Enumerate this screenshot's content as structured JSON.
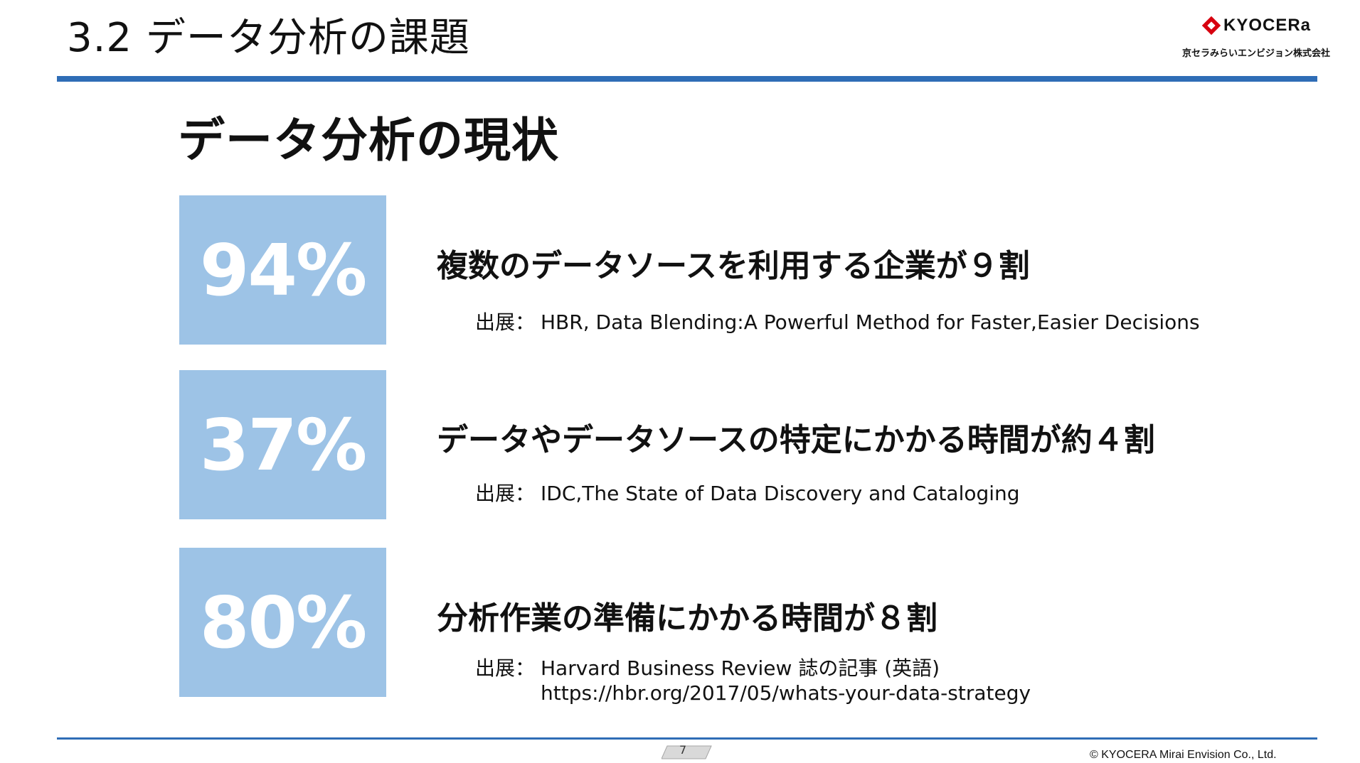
{
  "header": {
    "title": "3.2 データ分析の課題",
    "logo_text": "KYOCERa",
    "logo_subtitle": "京セラみらいエンビジョン株式会社",
    "brand_color": "#d7000f",
    "rule_color": "#2f6db6"
  },
  "section": {
    "heading": "データ分析の現状"
  },
  "stats": [
    {
      "value": "94%",
      "description": "複数のデータソースを利用する企業が９割",
      "source_label": "出展：",
      "source_text": "HBR, Data Blending:A Powerful Method for Faster,Easier Decisions"
    },
    {
      "value": "37%",
      "description": "データやデータソースの特定にかかる時間が約４割",
      "source_label": "出展：",
      "source_text": "IDC,The State of Data Discovery and Cataloging"
    },
    {
      "value": "80%",
      "description": "分析作業の準備にかかる時間が８割",
      "source_label": "出展：",
      "source_text": "Harvard Business Review 誌の記事 (英語)",
      "source_url": "https://hbr.org/2017/05/whats-your-data-strategy"
    }
  ],
  "box_color": "#9dc3e6",
  "footer": {
    "page_number": "7",
    "copyright": "© KYOCERA Mirai Envision Co., Ltd."
  }
}
